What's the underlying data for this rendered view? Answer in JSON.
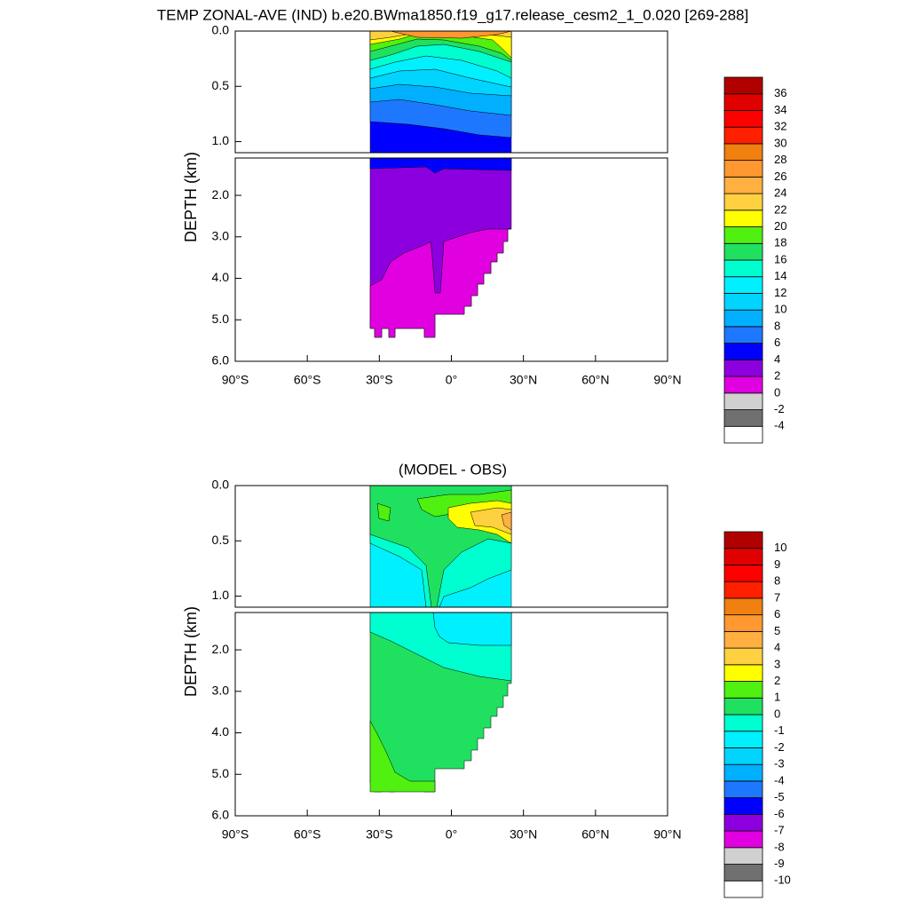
{
  "chart_data": [
    {
      "type": "contour",
      "title": "TEMP ZONAL-AVE (IND) b.e20.BWma1850.f19_g17.release_cesm2_1_0.020 [269-288]",
      "ylabel": "DEPTH (km)",
      "xlim": [
        -90,
        90
      ],
      "xticks": [
        {
          "value": -90,
          "label": "90°S"
        },
        {
          "value": -60,
          "label": "60°S"
        },
        {
          "value": -30,
          "label": "30°S"
        },
        {
          "value": 0,
          "label": "0°"
        },
        {
          "value": 30,
          "label": "30°N"
        },
        {
          "value": 60,
          "label": "60°N"
        },
        {
          "value": 90,
          "label": "90°N"
        }
      ],
      "ylim_upper": [
        0,
        1.1
      ],
      "yticks_upper": [
        {
          "value": 0,
          "label": "0.0"
        },
        {
          "value": 0.5,
          "label": "0.5"
        },
        {
          "value": 1,
          "label": "1.0"
        }
      ],
      "ylim_lower": [
        1.1,
        6
      ],
      "yticks_lower": [
        {
          "value": 2,
          "label": "2.0"
        },
        {
          "value": 3,
          "label": "3.0"
        },
        {
          "value": 4,
          "label": "4.0"
        },
        {
          "value": 5,
          "label": "5.0"
        },
        {
          "value": 6,
          "label": "6.0"
        }
      ],
      "levels": [
        -4,
        -2,
        0,
        2,
        4,
        6,
        8,
        10,
        12,
        14,
        16,
        18,
        20,
        22,
        24,
        26,
        28,
        30,
        32,
        34,
        36
      ],
      "colors": [
        "#ffffff",
        "#707070",
        "#d0d0d0",
        "#e000e0",
        "#8c00e0",
        "#0000ff",
        "#1e78ff",
        "#00b0ff",
        "#00d4ff",
        "#00f0ff",
        "#00ffd0",
        "#20e060",
        "#50f010",
        "#ffff00",
        "#ffd040",
        "#ffb040",
        "#ff9830",
        "#f08010",
        "#ff2000",
        "#ff0000",
        "#e00000",
        "#b00000"
      ]
    },
    {
      "type": "contour",
      "title": "(MODEL - OBS)",
      "ylabel": "DEPTH (km)",
      "xlim": [
        -90,
        90
      ],
      "xticks": [
        {
          "value": -90,
          "label": "90°S"
        },
        {
          "value": -60,
          "label": "60°S"
        },
        {
          "value": -30,
          "label": "30°S"
        },
        {
          "value": 0,
          "label": "0°"
        },
        {
          "value": 30,
          "label": "30°N"
        },
        {
          "value": 60,
          "label": "60°N"
        },
        {
          "value": 90,
          "label": "90°N"
        }
      ],
      "ylim_upper": [
        0,
        1.1
      ],
      "yticks_upper": [
        {
          "value": 0,
          "label": "0.0"
        },
        {
          "value": 0.5,
          "label": "0.5"
        },
        {
          "value": 1,
          "label": "1.0"
        }
      ],
      "ylim_lower": [
        1.1,
        6
      ],
      "yticks_lower": [
        {
          "value": 2,
          "label": "2.0"
        },
        {
          "value": 3,
          "label": "3.0"
        },
        {
          "value": 4,
          "label": "4.0"
        },
        {
          "value": 5,
          "label": "5.0"
        },
        {
          "value": 6,
          "label": "6.0"
        }
      ],
      "levels": [
        -10,
        -9,
        -8,
        -7,
        -6,
        -5,
        -4,
        -3,
        -2,
        -1,
        0,
        1,
        2,
        3,
        4,
        5,
        6,
        7,
        8,
        9,
        10
      ],
      "colors": [
        "#ffffff",
        "#707070",
        "#d0d0d0",
        "#e000e0",
        "#8c00e0",
        "#0000ff",
        "#1e78ff",
        "#00b0ff",
        "#00d4ff",
        "#00f0ff",
        "#00ffd0",
        "#20e060",
        "#50f010",
        "#ffff00",
        "#ffd040",
        "#ffb040",
        "#ff9830",
        "#f08010",
        "#ff2000",
        "#ff0000",
        "#e00000",
        "#b00000"
      ]
    }
  ]
}
